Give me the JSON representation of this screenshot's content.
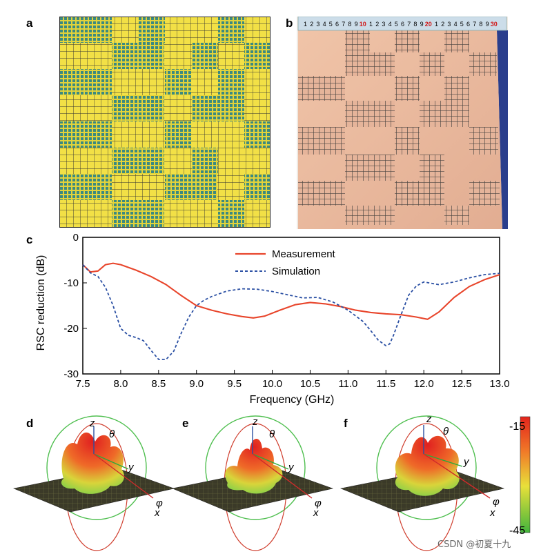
{
  "panels": {
    "a": {
      "label": "a"
    },
    "b": {
      "label": "b",
      "ruler_digits": [
        "1",
        "2",
        "3",
        "4",
        "5",
        "6",
        "7",
        "8",
        "9"
      ],
      "ruler_red_marks": [
        "10",
        "20",
        "30"
      ]
    },
    "c": {
      "label": "c"
    },
    "d": {
      "label": "d"
    },
    "e": {
      "label": "e"
    },
    "f": {
      "label": "f"
    }
  },
  "chart_data": {
    "type": "line",
    "xlabel": "Frequency (GHz)",
    "ylabel": "RSC reduction (dB)",
    "xlim": [
      7.5,
      13.0
    ],
    "ylim": [
      -30,
      0
    ],
    "xticks": [
      "7.5",
      "8.0",
      "8.5",
      "9.0",
      "9.5",
      "10.0",
      "10.5",
      "11.0",
      "11.5",
      "12.0",
      "12.5",
      "13.0"
    ],
    "yticks": [
      "0",
      "-10",
      "-20",
      "-30"
    ],
    "legend": [
      "Measurement",
      "Simulation"
    ],
    "legend_position": "top-center",
    "series": [
      {
        "name": "Measurement",
        "color": "#e8452b",
        "style": "solid",
        "x": [
          7.5,
          7.6,
          7.7,
          7.8,
          7.9,
          8.0,
          8.2,
          8.4,
          8.6,
          8.8,
          9.0,
          9.2,
          9.4,
          9.6,
          9.75,
          9.9,
          10.1,
          10.3,
          10.5,
          10.7,
          10.9,
          11.1,
          11.3,
          11.5,
          11.7,
          11.9,
          12.05,
          12.2,
          12.4,
          12.6,
          12.8,
          13.0
        ],
        "y": [
          -6,
          -7.6,
          -7.4,
          -6,
          -5.7,
          -6,
          -7.2,
          -8.6,
          -10.4,
          -12.8,
          -15,
          -16,
          -16.8,
          -17.4,
          -17.7,
          -17.3,
          -16,
          -14.8,
          -14.3,
          -14.6,
          -15.2,
          -16,
          -16.5,
          -16.8,
          -17,
          -17.5,
          -18,
          -16.4,
          -13.2,
          -10.8,
          -9.3,
          -8.2
        ]
      },
      {
        "name": "Simulation",
        "color": "#2a4fa3",
        "style": "dashed",
        "x": [
          7.5,
          7.6,
          7.7,
          7.8,
          7.9,
          8.0,
          8.1,
          8.2,
          8.3,
          8.4,
          8.5,
          8.6,
          8.7,
          8.8,
          8.9,
          9.0,
          9.1,
          9.2,
          9.4,
          9.6,
          9.8,
          10.0,
          10.2,
          10.4,
          10.6,
          10.8,
          11.0,
          11.2,
          11.3,
          11.4,
          11.5,
          11.55,
          11.6,
          11.7,
          11.8,
          11.9,
          12.0,
          12.2,
          12.4,
          12.6,
          12.8,
          13.0
        ],
        "y": [
          -6,
          -7.8,
          -8.6,
          -11,
          -15,
          -20,
          -21.5,
          -22,
          -22.7,
          -24.8,
          -26.8,
          -26.8,
          -25,
          -21,
          -17.5,
          -15,
          -13.8,
          -13,
          -11.8,
          -11.3,
          -11.4,
          -11.9,
          -12.6,
          -13.3,
          -13.2,
          -14.2,
          -16,
          -18.5,
          -20.5,
          -22.6,
          -23.8,
          -23.4,
          -21.5,
          -17,
          -12.7,
          -10.7,
          -9.8,
          -10.4,
          -9.8,
          -8.9,
          -8.2,
          -7.9
        ]
      }
    ]
  },
  "radiation": {
    "axis_z": "z",
    "axis_y": "y",
    "axis_x": "x",
    "theta": "θ",
    "phi": "φ",
    "colorbar_max": "-15",
    "colorbar_min": "-45"
  },
  "watermark": "CSDN @初夏十九"
}
